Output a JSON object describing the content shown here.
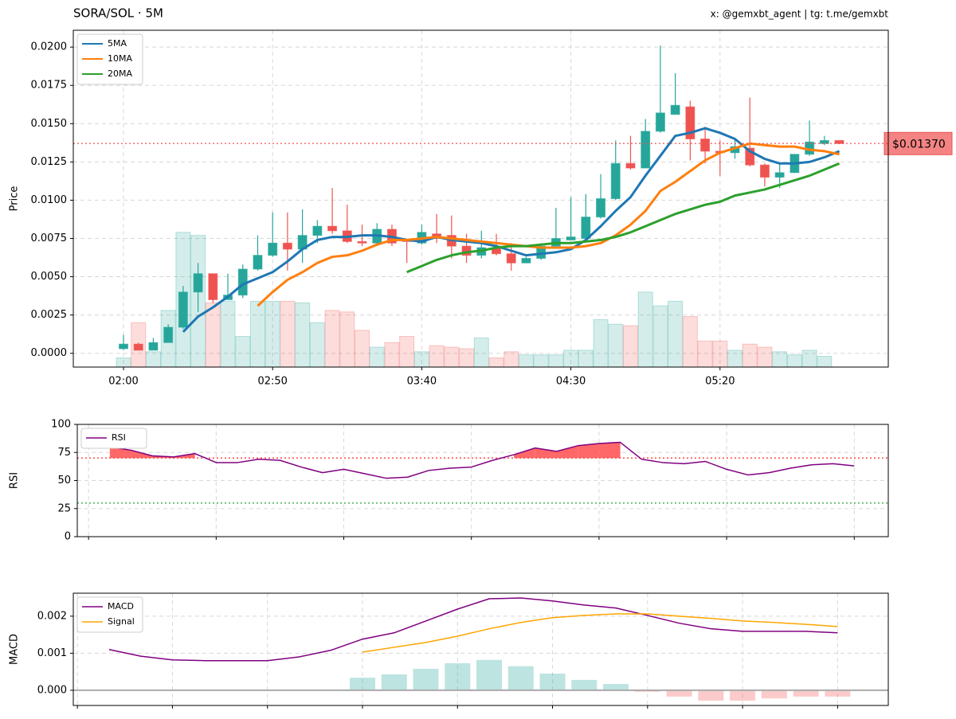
{
  "chart_data": [
    {
      "type": "candlestick",
      "title": "SORA/SOL · 5M",
      "watermark": "x: @gemxbt_agent | tg: t.me/gemxbt",
      "ylabel": "Price",
      "categories": [
        "02:00",
        null,
        null,
        null,
        null,
        null,
        null,
        null,
        null,
        null,
        "02:50",
        null,
        null,
        null,
        null,
        null,
        null,
        null,
        null,
        null,
        "03:40",
        null,
        null,
        null,
        null,
        null,
        null,
        null,
        null,
        null,
        "04:30",
        null,
        null,
        null,
        null,
        null,
        null,
        null,
        null,
        null,
        "05:20",
        null,
        null,
        null,
        null,
        null,
        null,
        null,
        null
      ],
      "open": [
        0.0003,
        0.0006,
        0.0002,
        0.0007,
        0.0017,
        0.004,
        0.0052,
        0.0035,
        0.0038,
        0.0055,
        0.0064,
        0.0072,
        0.0068,
        0.0077,
        0.0083,
        0.008,
        0.0073,
        0.0072,
        0.0081,
        0.0074,
        0.0072,
        0.0078,
        0.0077,
        0.007,
        0.0064,
        0.0069,
        0.0065,
        0.0059,
        0.0062,
        0.007,
        0.0074,
        0.0075,
        0.0089,
        0.0101,
        0.0124,
        0.0121,
        0.0145,
        0.0156,
        0.0161,
        0.014,
        0.0132,
        0.0131,
        0.0134,
        0.0123,
        0.0115,
        0.0118,
        0.013,
        0.0137,
        0.0139
      ],
      "high": [
        0.0012,
        0.0007,
        0.001,
        0.0019,
        0.0044,
        0.0059,
        0.0052,
        0.0052,
        0.0058,
        0.0077,
        0.0092,
        0.0092,
        0.0094,
        0.0087,
        0.0108,
        0.0097,
        0.0084,
        0.0085,
        0.0084,
        0.0074,
        0.0084,
        0.0091,
        0.009,
        0.0078,
        0.008,
        0.0078,
        0.0072,
        0.0063,
        0.0072,
        0.0095,
        0.0102,
        0.0104,
        0.0117,
        0.0139,
        0.0142,
        0.0153,
        0.0201,
        0.0183,
        0.0165,
        0.0148,
        0.0139,
        0.014,
        0.0167,
        0.0124,
        0.0124,
        0.013,
        0.0152,
        0.0142,
        0.0139
      ],
      "low": [
        0.0002,
        0.0002,
        0.0002,
        0.0007,
        0.0016,
        0.0027,
        0.0033,
        0.0035,
        0.0036,
        0.0054,
        0.0063,
        0.0054,
        0.0059,
        0.0072,
        0.0078,
        0.0072,
        0.007,
        0.007,
        0.007,
        0.0059,
        0.0071,
        0.0072,
        0.0062,
        0.0059,
        0.0062,
        0.0064,
        0.0054,
        0.0059,
        0.0061,
        0.0069,
        0.0074,
        0.0075,
        0.0088,
        0.01,
        0.012,
        0.0121,
        0.0144,
        0.0156,
        0.0126,
        0.0124,
        0.0116,
        0.0127,
        0.0122,
        0.0109,
        0.0108,
        0.0118,
        0.0129,
        0.0136,
        0.0137
      ],
      "close": [
        0.0006,
        0.0002,
        0.0007,
        0.0017,
        0.004,
        0.0052,
        0.0035,
        0.0038,
        0.0055,
        0.0064,
        0.0072,
        0.0068,
        0.0077,
        0.0083,
        0.008,
        0.0073,
        0.0072,
        0.0081,
        0.0072,
        0.0073,
        0.0079,
        0.0075,
        0.007,
        0.0064,
        0.0069,
        0.0065,
        0.0059,
        0.0062,
        0.007,
        0.0075,
        0.0076,
        0.0089,
        0.0101,
        0.0124,
        0.0121,
        0.0145,
        0.0157,
        0.0162,
        0.014,
        0.0132,
        0.0131,
        0.0135,
        0.0123,
        0.0115,
        0.0118,
        0.013,
        0.0138,
        0.0139,
        0.0137
      ],
      "volume": [
        0.0006,
        0.0029,
        0.001,
        0.0037,
        0.0088,
        0.0086,
        0.0042,
        0.0043,
        0.002,
        0.0043,
        0.0043,
        0.0043,
        0.0042,
        0.0029,
        0.0037,
        0.0036,
        0.0024,
        0.0013,
        0.0016,
        0.002,
        0.001,
        0.0014,
        0.0013,
        0.0012,
        0.0019,
        0.0006,
        0.001,
        0.0008,
        0.0008,
        0.0008,
        0.0011,
        0.0011,
        0.0031,
        0.0028,
        0.0027,
        0.0049,
        0.004,
        0.0043,
        0.0033,
        0.0017,
        0.0017,
        0.0011,
        0.0015,
        0.0013,
        0.001,
        0.0008,
        0.0011,
        0.0007,
        null
      ],
      "up_color": "#26a69a",
      "down_color": "#ef5350",
      "series": [
        {
          "name": "5MA",
          "color": "#1f77b4",
          "values": [
            null,
            null,
            null,
            null,
            0.0014,
            0.0024,
            0.003,
            0.0037,
            0.0045,
            0.0049,
            0.0053,
            0.006,
            0.0068,
            0.0074,
            0.0076,
            0.0076,
            0.0077,
            0.0077,
            0.0076,
            0.0074,
            0.0073,
            0.0076,
            0.0074,
            0.0073,
            0.0072,
            0.007,
            0.0067,
            0.0064,
            0.0065,
            0.0066,
            0.0068,
            0.0074,
            0.0083,
            0.0093,
            0.0102,
            0.0116,
            0.0129,
            0.0142,
            0.0144,
            0.0147,
            0.0144,
            0.014,
            0.0132,
            0.0127,
            0.0124,
            0.0124,
            0.0125,
            0.0128,
            0.0132
          ]
        },
        {
          "name": "10MA",
          "color": "#ff7f0e",
          "values": [
            null,
            null,
            null,
            null,
            null,
            null,
            null,
            null,
            null,
            0.0031,
            0.004,
            0.0048,
            0.0053,
            0.0059,
            0.0063,
            0.0064,
            0.0067,
            0.0071,
            0.0074,
            0.0074,
            0.0075,
            0.0076,
            0.0075,
            0.0074,
            0.0073,
            0.0072,
            0.0071,
            0.007,
            0.0069,
            0.0069,
            0.0069,
            0.007,
            0.0072,
            0.0077,
            0.0084,
            0.0093,
            0.0106,
            0.0112,
            0.0119,
            0.0126,
            0.0131,
            0.0134,
            0.0137,
            0.0136,
            0.0135,
            0.0135,
            0.0133,
            0.0132,
            0.013
          ]
        },
        {
          "name": "20MA",
          "color": "#2ca02c",
          "values": [
            null,
            null,
            null,
            null,
            null,
            null,
            null,
            null,
            null,
            null,
            null,
            null,
            null,
            null,
            null,
            null,
            null,
            null,
            null,
            0.0053,
            0.0057,
            0.0061,
            0.0064,
            0.0066,
            0.0067,
            0.0069,
            0.007,
            0.007,
            0.0071,
            0.0072,
            0.0072,
            0.0073,
            0.0074,
            0.0076,
            0.0079,
            0.0083,
            0.0087,
            0.0091,
            0.0094,
            0.0097,
            0.0099,
            0.0103,
            0.0105,
            0.0107,
            0.011,
            0.0113,
            0.0116,
            0.012,
            0.0124
          ]
        }
      ],
      "ylim": [
        -0.0009,
        0.0211
      ],
      "yticks": [
        {
          "value": 0,
          "label": "0.0000"
        },
        {
          "value": 0.0025,
          "label": "0.0025"
        },
        {
          "value": 0.005,
          "label": "0.0050"
        },
        {
          "value": 0.0075,
          "label": "0.0075"
        },
        {
          "value": 0.01,
          "label": "0.0100"
        },
        {
          "value": 0.0125,
          "label": "0.0125"
        },
        {
          "value": 0.015,
          "label": "0.0150"
        },
        {
          "value": 0.0175,
          "label": "0.0175"
        },
        {
          "value": 0.02,
          "label": "0.0200"
        }
      ],
      "grid": true,
      "legend": "upper left",
      "last_price": {
        "value": 0.0137,
        "label": "$0.01370",
        "color": "#f05050"
      }
    },
    {
      "type": "rsi",
      "ylabel": "RSI",
      "x": [
        1,
        2,
        3,
        4,
        5,
        6,
        7,
        8,
        9,
        10,
        11,
        12,
        13,
        14,
        15,
        16,
        17,
        18,
        19,
        20,
        21,
        22,
        23,
        24,
        25,
        26,
        27,
        28,
        29,
        30,
        31,
        32,
        33,
        34,
        35,
        36
      ],
      "series": [
        {
          "name": "RSI",
          "color": "#800080",
          "values": [
            80,
            77,
            72,
            71,
            74,
            66,
            66,
            69,
            68,
            62,
            57,
            60,
            56,
            52,
            53,
            59,
            61,
            62,
            68,
            73,
            79,
            76,
            81,
            83,
            84,
            69,
            66,
            65,
            67,
            60,
            55,
            57,
            61,
            64,
            65,
            63
          ]
        }
      ],
      "levels": [
        {
          "value": 70,
          "color": "#ff4d4d",
          "fill": true
        },
        {
          "value": 30,
          "color": "#4caf50",
          "fill": false
        }
      ],
      "xlim": [
        -0.53,
        37.6
      ],
      "xticks": [
        0,
        6,
        12,
        18,
        24,
        30,
        36
      ],
      "ylim": [
        0,
        100
      ],
      "yticks": [
        0,
        25,
        50,
        75,
        100
      ],
      "grid": true,
      "legend": "upper left"
    },
    {
      "type": "macd",
      "ylabel": "MACD",
      "x": [
        1,
        2,
        3,
        4,
        5,
        6,
        7,
        8,
        9,
        10,
        11,
        12,
        13,
        14,
        15,
        16,
        17,
        18,
        19,
        20,
        21,
        22,
        23,
        24
      ],
      "series": [
        {
          "name": "MACD",
          "color": "#800080",
          "values": [
            0.0011,
            0.00092,
            0.00082,
            0.0008,
            0.0008,
            0.0008,
            0.0009,
            0.00108,
            0.00138,
            0.00155,
            0.00187,
            0.00219,
            0.00247,
            0.00249,
            0.00241,
            0.0023,
            0.00222,
            0.00202,
            0.00181,
            0.00166,
            0.00159,
            0.00159,
            0.00159,
            0.00155
          ]
        },
        {
          "name": "Signal",
          "color": "#ffa500",
          "values": [
            null,
            null,
            null,
            null,
            null,
            null,
            null,
            null,
            0.00103,
            0.00116,
            0.00129,
            0.00146,
            0.00166,
            0.00183,
            0.00196,
            0.00202,
            0.00206,
            0.00206,
            0.002,
            0.00194,
            0.00187,
            0.00183,
            0.00178,
            0.00172
          ]
        }
      ],
      "histogram": {
        "positive_color": "#26a69a",
        "negative_color": "#ef5350",
        "values": [
          null,
          null,
          null,
          null,
          null,
          null,
          null,
          null,
          0.00034,
          0.00043,
          0.00058,
          0.00073,
          0.00082,
          0.00065,
          0.00045,
          0.00028,
          0.00017,
          -4e-05,
          -0.00017,
          -0.00028,
          -0.00028,
          -0.00022,
          -0.00017,
          -0.00017
        ]
      },
      "xlim": [
        -0.13,
        25.6
      ],
      "xticks": [
        0,
        3,
        6,
        9,
        12,
        15,
        18,
        21,
        24
      ],
      "ylim": [
        -0.00041,
        0.00262
      ],
      "yticks": [
        {
          "value": 0,
          "label": "0.000"
        },
        {
          "value": 0.001,
          "label": "0.001"
        },
        {
          "value": 0.002,
          "label": "0.002"
        }
      ],
      "grid": true,
      "legend": "upper left"
    }
  ]
}
